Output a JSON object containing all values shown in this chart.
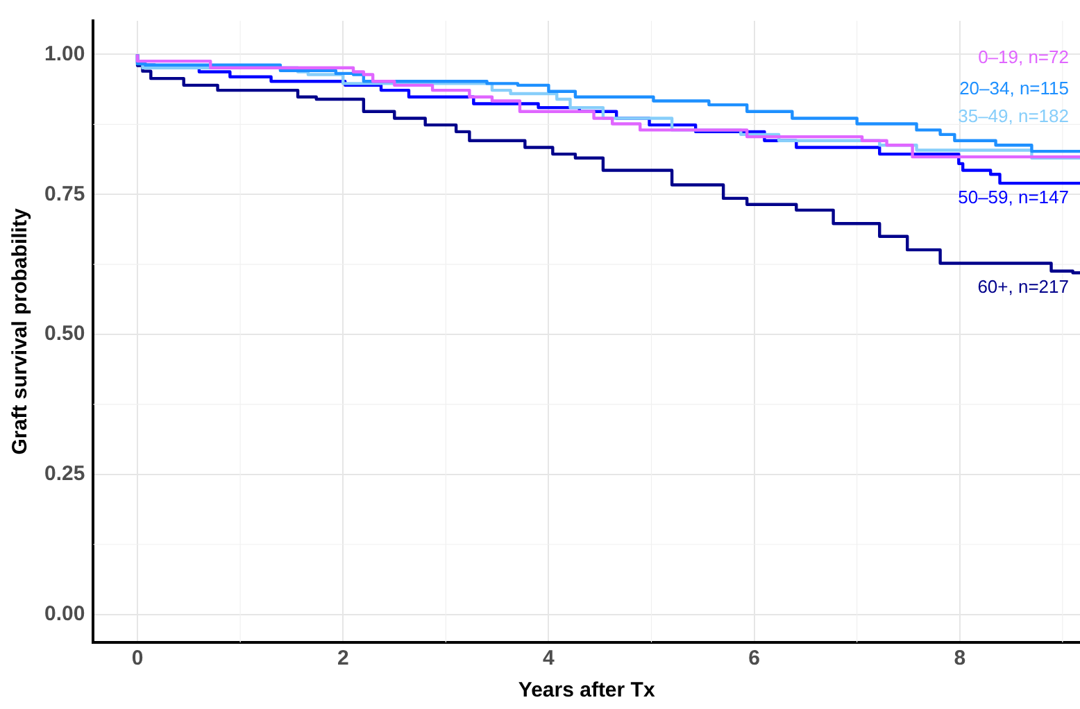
{
  "chart_data": {
    "type": "step",
    "xlabel": "Years after Tx",
    "ylabel": "Graft survival probability",
    "xlim": [
      -0.43,
      9.17
    ],
    "xticks": [
      0,
      2,
      4,
      6,
      8
    ],
    "ylim": [
      -0.05,
      1.06
    ],
    "yticks": [
      {
        "value": 0,
        "label": "0.00"
      },
      {
        "value": 0.25,
        "label": "0.25"
      },
      {
        "value": 0.5,
        "label": "0.50"
      },
      {
        "value": 0.75,
        "label": "0.75"
      },
      {
        "value": 1,
        "label": "1.00"
      }
    ],
    "grid": true,
    "marker": "none",
    "line_style": "solid",
    "series": [
      {
        "name": "0–19, n=72",
        "color": "#e066ff",
        "x": [
          0,
          0.71,
          2.1,
          2.2,
          2.29,
          2.5,
          2.87,
          3.23,
          3.45,
          3.72,
          4.44,
          4.62,
          4.89,
          5.93,
          7.05,
          7.29,
          7.54,
          7.62,
          9.17
        ],
        "values": [
          1,
          0.988,
          0.976,
          0.969,
          0.964,
          0.952,
          0.945,
          0.936,
          0.924,
          0.917,
          0.898,
          0.886,
          0.876,
          0.865,
          0.853,
          0.846,
          0.838,
          0.817,
          0.817
        ]
      },
      {
        "name": "20–34, n=115",
        "color": "#1e90ff",
        "x": [
          0,
          0.08,
          1.39,
          1.93,
          2.1,
          2.2,
          3.4,
          3.7,
          4.0,
          4.26,
          5.02,
          5.56,
          5.93,
          6.37,
          7.0,
          7.58,
          7.81,
          7.95,
          8.35,
          8.7,
          9.1,
          9.17
        ],
        "values": [
          1,
          0.983,
          0.981,
          0.971,
          0.966,
          0.964,
          0.952,
          0.948,
          0.945,
          0.934,
          0.924,
          0.917,
          0.91,
          0.898,
          0.886,
          0.876,
          0.865,
          0.857,
          0.846,
          0.838,
          0.827,
          0.827
        ]
      },
      {
        "name": "35–49, n=182",
        "color": "#87cefa",
        "x": [
          0,
          0.05,
          1.56,
          1.66,
          2.0,
          3.45,
          3.63,
          4.08,
          4.21,
          4.53,
          5.2,
          5.87,
          6.24,
          7.22,
          7.58,
          8.7,
          8.97,
          9.17
        ],
        "values": [
          1,
          0.988,
          0.976,
          0.969,
          0.964,
          0.948,
          0.936,
          0.93,
          0.92,
          0.905,
          0.886,
          0.865,
          0.857,
          0.846,
          0.838,
          0.829,
          0.815,
          0.815
        ]
      },
      {
        "name": "50–59, n=147",
        "color": "#0000ff",
        "x": [
          0,
          0.05,
          0.17,
          0.6,
          0.9,
          1.3,
          2.02,
          2.37,
          2.64,
          3.27,
          3.9,
          4.3,
          4.66,
          4.98,
          5.43,
          6.1,
          6.41,
          7.22,
          7.99,
          8.03,
          8.3,
          8.39,
          8.97,
          9.17
        ],
        "values": [
          1,
          0.985,
          0.981,
          0.976,
          0.969,
          0.96,
          0.952,
          0.945,
          0.936,
          0.924,
          0.912,
          0.905,
          0.898,
          0.886,
          0.874,
          0.862,
          0.846,
          0.834,
          0.822,
          0.805,
          0.793,
          0.786,
          0.77,
          0.77
        ]
      },
      {
        "name": "60+, n=217",
        "color": "#00008b",
        "x": [
          0,
          0.05,
          0.13,
          0.45,
          0.78,
          1.56,
          1.74,
          2.2,
          2.5,
          2.8,
          3.1,
          3.23,
          3.77,
          4.04,
          4.26,
          4.53,
          5.2,
          5.7,
          5.93,
          6.41,
          6.77,
          7.22,
          7.49,
          7.81,
          8.89,
          9.1,
          9.17
        ],
        "values": [
          1,
          0.98,
          0.97,
          0.957,
          0.945,
          0.936,
          0.924,
          0.92,
          0.898,
          0.886,
          0.874,
          0.862,
          0.846,
          0.834,
          0.822,
          0.815,
          0.793,
          0.767,
          0.743,
          0.732,
          0.722,
          0.698,
          0.675,
          0.651,
          0.627,
          0.613,
          0.61
        ]
      }
    ]
  }
}
